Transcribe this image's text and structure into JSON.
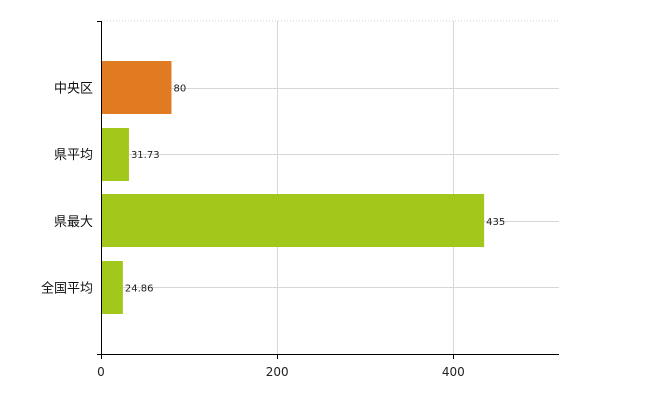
{
  "chart_data": {
    "type": "bar",
    "orientation": "horizontal",
    "categories": [
      "中央区",
      "県平均",
      "県最大",
      "全国平均"
    ],
    "values": [
      80,
      31.73,
      435,
      24.86
    ],
    "value_labels": [
      "80",
      "31.73",
      "435",
      "24.86"
    ],
    "bar_colors": [
      "#e07b22",
      "#a2c81c",
      "#a2c81c",
      "#a2c81c"
    ],
    "xlim": [
      0,
      520
    ],
    "x_ticks": [
      0,
      200,
      400
    ],
    "x_tick_labels": [
      "0",
      "200",
      "400"
    ],
    "grid": true,
    "title": "",
    "xlabel": "",
    "ylabel": ""
  }
}
